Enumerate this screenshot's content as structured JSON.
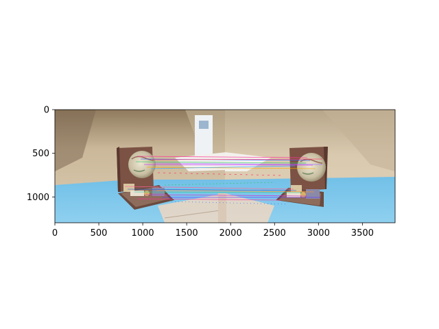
{
  "figure": {
    "x_axis": {
      "ticks": [
        "0",
        "500",
        "1000",
        "1500",
        "2000",
        "2500",
        "3000",
        "3500"
      ]
    },
    "y_axis": {
      "ticks": [
        "0",
        "500",
        "1000"
      ]
    },
    "image": {
      "description_colors": {
        "wall": "#c9b79e",
        "table": "#7fc3e6",
        "globe": "#d8d0b8",
        "book": "#8a5a4a",
        "match_lines": [
          "#ff3399",
          "#33cc66",
          "#3366ff",
          "#cc33ff",
          "#ffaa00"
        ]
      }
    }
  }
}
